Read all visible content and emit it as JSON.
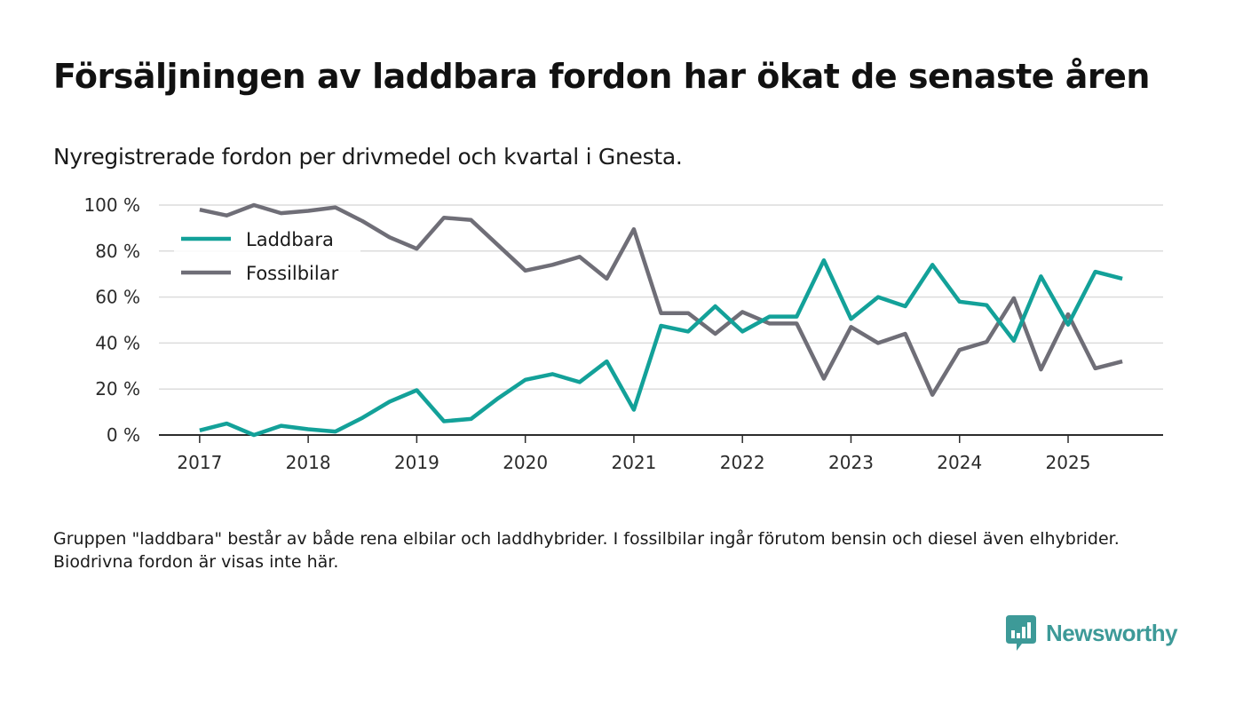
{
  "title": "Försäljningen av laddbara fordon har ökat de senaste åren",
  "subtitle": "Nyregistrerade fordon per drivmedel och kvartal i Gnesta.",
  "footnote": "Gruppen \"laddbara\" består av både rena elbilar och laddhybrider. I fossilbilar ingår förutom bensin och diesel även elhybrider. Biodrivna fordon är visas inte här.",
  "brand": {
    "name": "Newsworthy",
    "icon": "newsworthy-logo-icon",
    "color": "#3d9a98"
  },
  "chart_data": {
    "type": "line",
    "title": "Försäljningen av laddbara fordon har ökat de senaste åren",
    "subtitle": "Nyregistrerade fordon per drivmedel och kvartal i Gnesta.",
    "xlabel": "",
    "ylabel": "",
    "x_ticks": [
      "2017",
      "2018",
      "2019",
      "2020",
      "2021",
      "2022",
      "2023",
      "2024",
      "2025"
    ],
    "x_range": [
      2016.625,
      2025.875
    ],
    "y_ticks": [
      "0 %",
      "20 %",
      "40 %",
      "60 %",
      "80 %",
      "100 %"
    ],
    "y_tick_values": [
      0,
      20,
      40,
      60,
      80,
      100
    ],
    "ylim": [
      0,
      100
    ],
    "grid": true,
    "legend_position": "top-left",
    "x": [
      2017.0,
      2017.25,
      2017.5,
      2017.75,
      2018.0,
      2018.25,
      2018.5,
      2018.75,
      2019.0,
      2019.25,
      2019.5,
      2019.75,
      2020.0,
      2020.25,
      2020.5,
      2020.75,
      2021.0,
      2021.25,
      2021.5,
      2021.75,
      2022.0,
      2022.25,
      2022.5,
      2022.75,
      2023.0,
      2023.25,
      2023.5,
      2023.75,
      2024.0,
      2024.25,
      2024.5,
      2024.75,
      2025.0,
      2025.25,
      2025.5
    ],
    "series": [
      {
        "name": "Laddbara",
        "color": "#13a199",
        "values": [
          2,
          5,
          0,
          4,
          2.5,
          1.5,
          7.5,
          14.5,
          19.5,
          6,
          7,
          16,
          24,
          26.5,
          23,
          32,
          11,
          47.5,
          45,
          56,
          45,
          51.5,
          51.5,
          76,
          50.5,
          60,
          56,
          74,
          58,
          56.5,
          41,
          69,
          48,
          71,
          68
        ]
      },
      {
        "name": "Fossilbilar",
        "color": "#6f6e77",
        "values": [
          98,
          95.5,
          100,
          96.5,
          97.5,
          99,
          93,
          86,
          81,
          94.5,
          93.5,
          82.5,
          71.5,
          74,
          77.5,
          68,
          89.5,
          53,
          53,
          44,
          53.5,
          48.5,
          48.5,
          24.5,
          47,
          40,
          44,
          17.5,
          37,
          40.5,
          59.5,
          28.5,
          52.5,
          29,
          32
        ]
      }
    ]
  }
}
